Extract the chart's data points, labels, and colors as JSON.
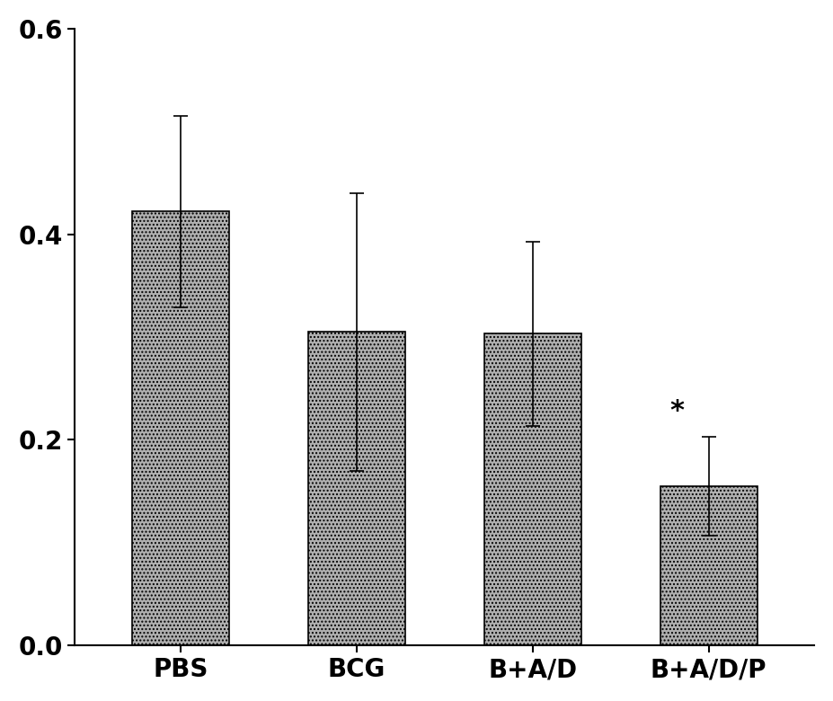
{
  "categories": [
    "PBS",
    "BCG",
    "B+A/D",
    "B+A/D/P"
  ],
  "values": [
    0.422,
    0.305,
    0.303,
    0.155
  ],
  "errors": [
    0.093,
    0.135,
    0.09,
    0.048
  ],
  "bar_color": "#aaaaaa",
  "ylim": [
    0.0,
    0.6
  ],
  "yticks": [
    0.0,
    0.2,
    0.4,
    0.6
  ],
  "significance": [
    false,
    false,
    false,
    true
  ],
  "background_color": "#ffffff",
  "figsize": [
    9.27,
    7.8
  ],
  "dpi": 100
}
